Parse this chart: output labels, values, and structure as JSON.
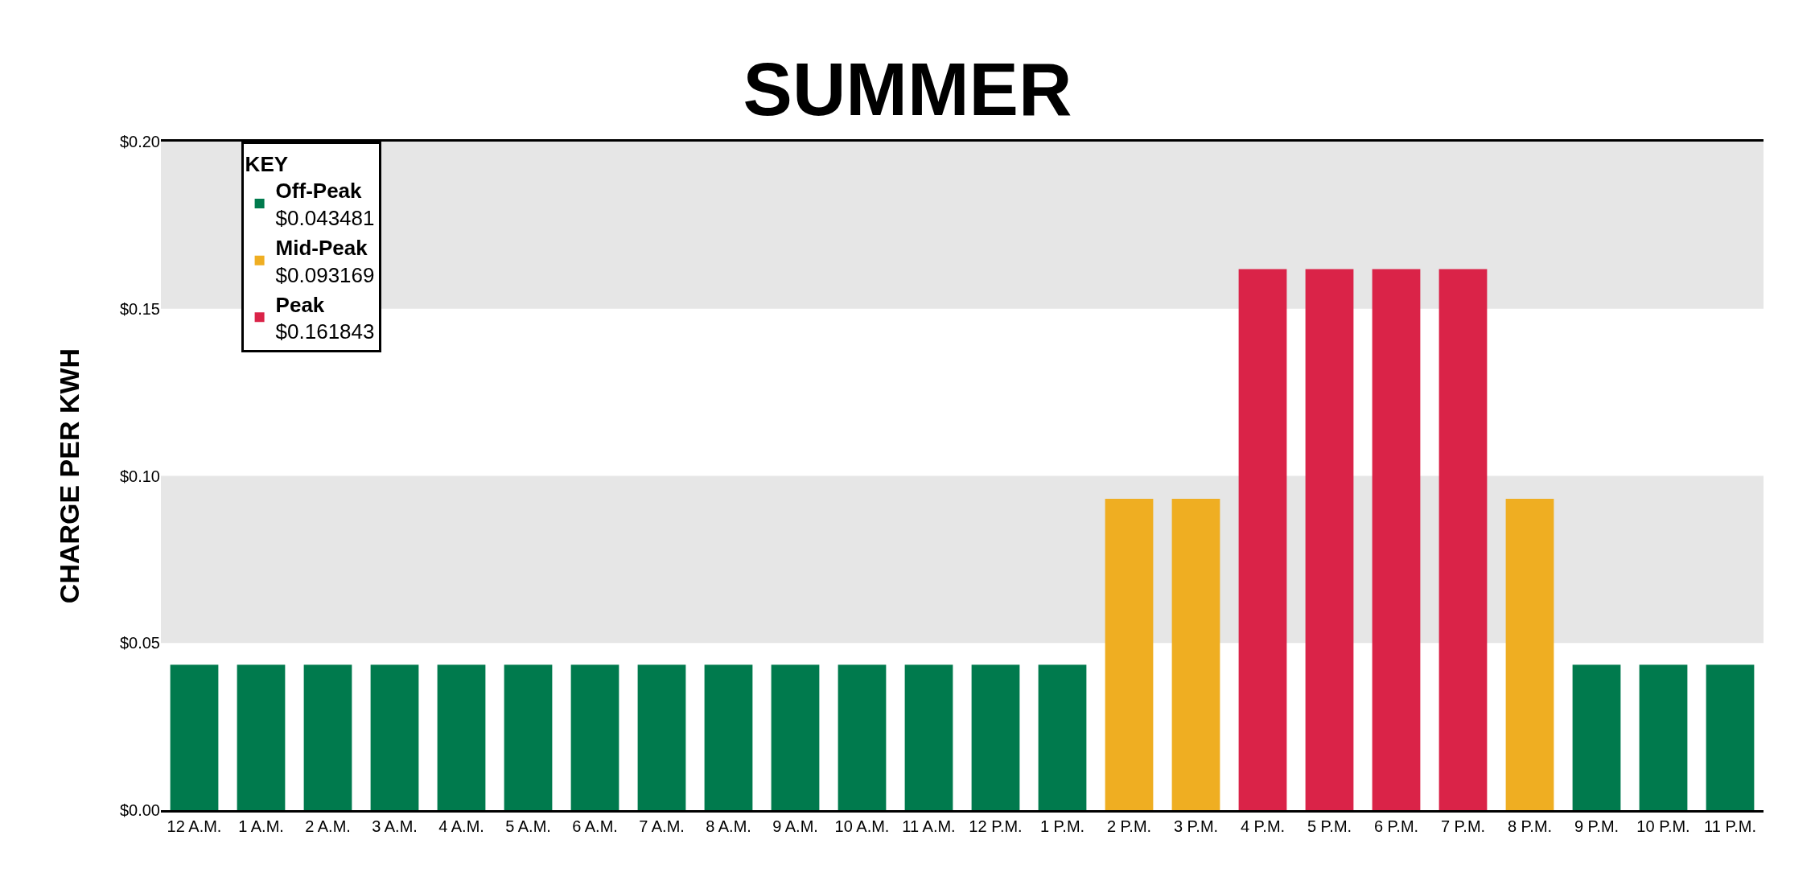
{
  "chart_data": {
    "type": "bar",
    "title": "SUMMER",
    "ylabel": "CHARGE PER KWH",
    "legend_title": "KEY",
    "legend": "top left",
    "categories": [
      "12 A.M.",
      "1 A.M.",
      "2 A.M.",
      "3 A.M.",
      "4 A.M.",
      "5 A.M.",
      "6 A.M.",
      "7 A.M.",
      "8 A.M.",
      "9 A.M.",
      "10 A.M.",
      "11 A.M.",
      "12 P.M.",
      "1 P.M.",
      "2 P.M.",
      "3 P.M.",
      "4 P.M.",
      "5 P.M.",
      "6 P.M.",
      "7 P.M.",
      "8 P.M.",
      "9 P.M.",
      "10 P.M.",
      "11 P.M."
    ],
    "series": [
      {
        "name": "Off-Peak\n$0.043481",
        "color": "#007a4d",
        "values": [
          0.043481,
          0.043481,
          0.043481,
          0.043481,
          0.043481,
          0.043481,
          0.043481,
          0.043481,
          0.043481,
          0.043481,
          0.043481,
          0.043481,
          0.043481,
          0.043481,
          null,
          null,
          null,
          null,
          null,
          null,
          null,
          0.043481,
          0.043481,
          0.043481
        ]
      },
      {
        "name": "Mid-Peak\n$0.093169",
        "color": "#efae22",
        "values": [
          null,
          null,
          null,
          null,
          null,
          null,
          null,
          null,
          null,
          null,
          null,
          null,
          null,
          null,
          0.093169,
          0.093169,
          null,
          null,
          null,
          null,
          0.093169,
          null,
          null,
          null
        ]
      },
      {
        "name": "Peak\n$0.161843",
        "color": "#da2348",
        "values": [
          null,
          null,
          null,
          null,
          null,
          null,
          null,
          null,
          null,
          null,
          null,
          null,
          null,
          null,
          null,
          null,
          0.161843,
          0.161843,
          0.161843,
          0.161843,
          null,
          null,
          null,
          null
        ]
      }
    ],
    "ylim": [
      0,
      0.2
    ],
    "yticks": [
      {
        "value": 0,
        "label": "$0.00"
      },
      {
        "value": 0.05,
        "label": "$0.05"
      },
      {
        "value": 0.1,
        "label": "$0.10"
      },
      {
        "value": 0.15,
        "label": "$0.15"
      },
      {
        "value": 0.2,
        "label": "$0.20"
      }
    ],
    "bands": [
      {
        "axis": "y",
        "from": 0.05,
        "to": 0.1,
        "color": "#e6e6e6"
      },
      {
        "axis": "y",
        "from": 0.15,
        "to": 0.2,
        "color": "#e6e6e6"
      }
    ],
    "grid": false
  }
}
